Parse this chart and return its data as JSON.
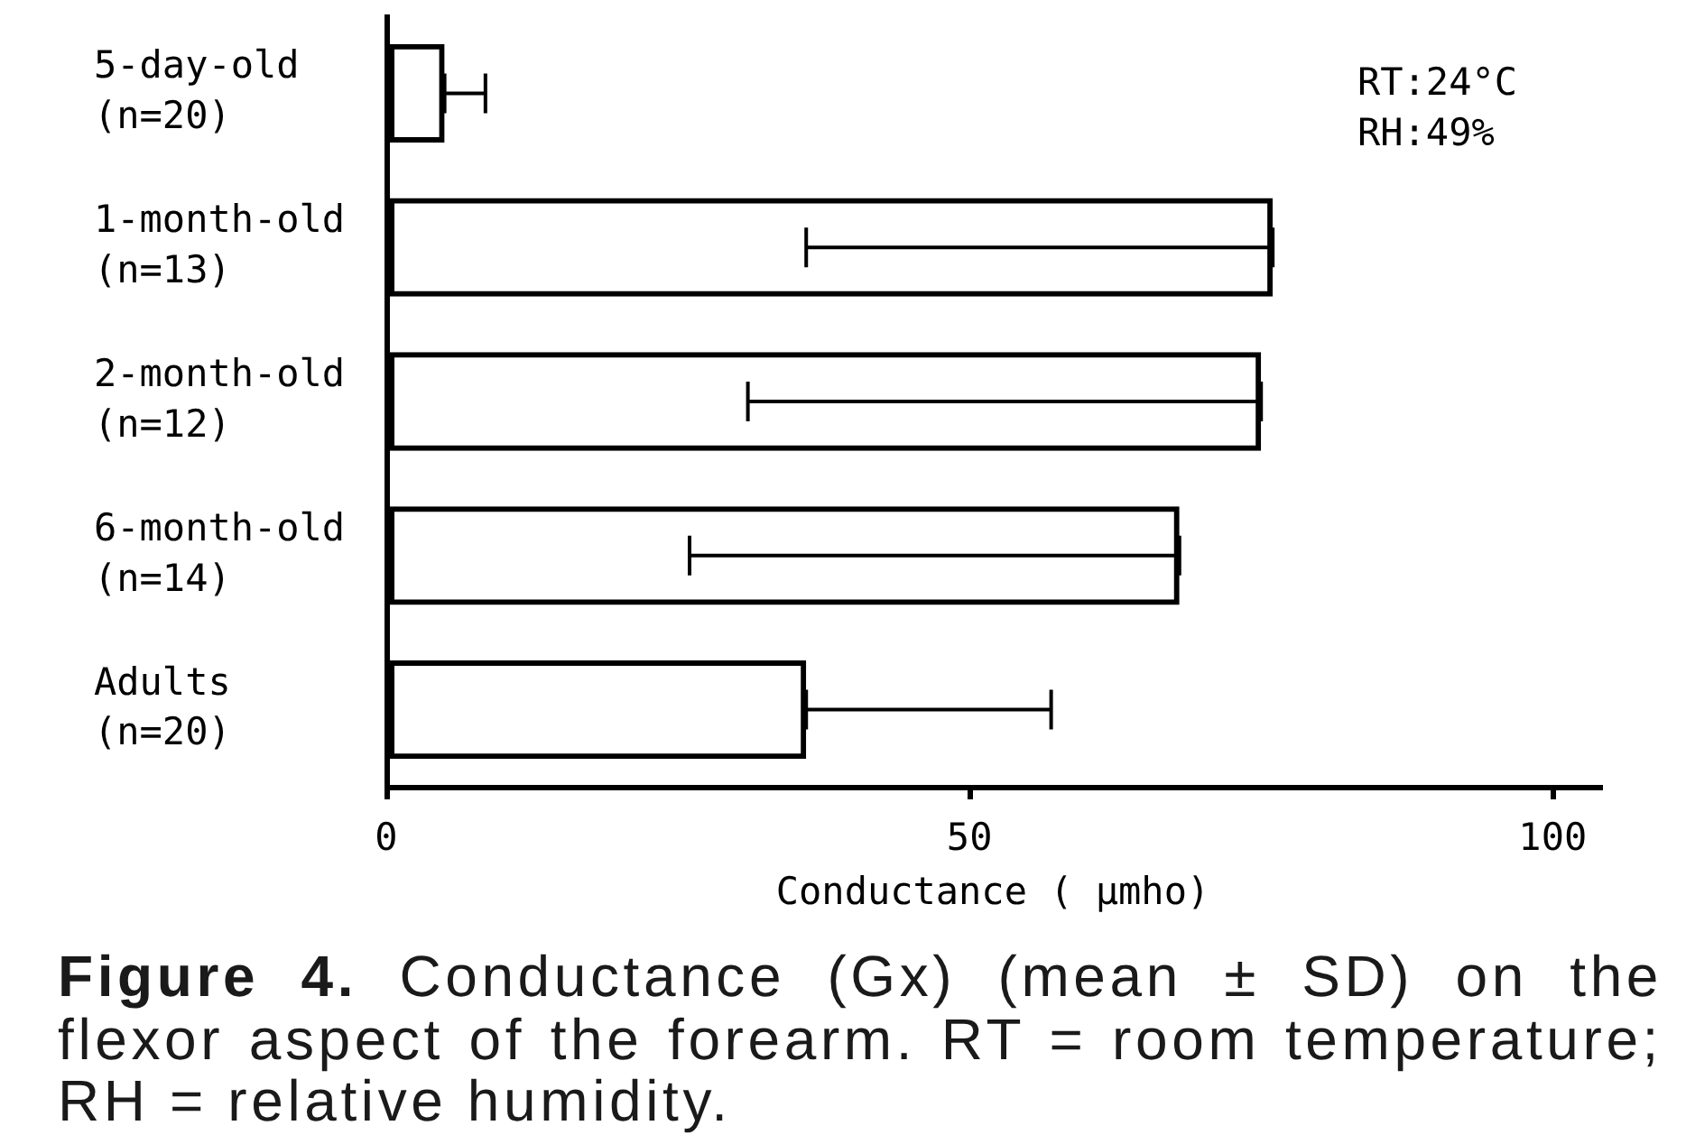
{
  "chart_data": {
    "type": "bar",
    "orientation": "horizontal",
    "title": "Figure 4.",
    "subtitle": "Conductance (Gx) (mean ± SD) on the flexor aspect of the forearm. RT = room temperature; RH = relative humidity.",
    "xlabel": "Conductance ( μmho)",
    "categories": [
      "5-day-old (n=20)",
      "1-month-old (n=13)",
      "2-month-old (n=12)",
      "6-month-old (n=14)",
      "Adults (n=20)"
    ],
    "values": [
      5,
      76,
      75,
      68,
      36
    ],
    "errors": [
      [
        5,
        8.5
      ],
      [
        36,
        76
      ],
      [
        31,
        75
      ],
      [
        26,
        68
      ],
      [
        36,
        57
      ]
    ],
    "color": "#000000",
    "xlim": [
      0,
      104
    ],
    "xticks": [
      0,
      50,
      100
    ],
    "annotations": [
      "RT:24°C",
      "RH:49%"
    ]
  }
}
